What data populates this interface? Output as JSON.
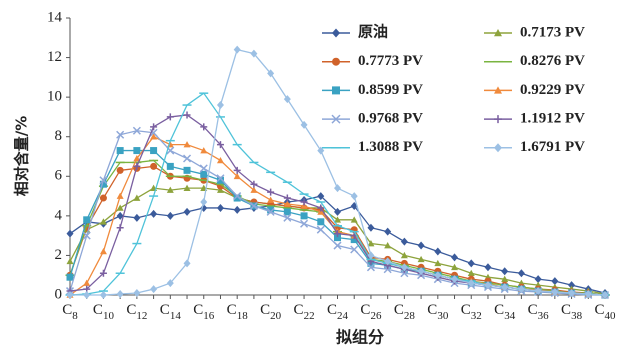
{
  "chart_data": {
    "type": "line",
    "xlabel": "拟组分",
    "ylabel": "相对含量/%",
    "categories": [
      "C8",
      null,
      "C10",
      null,
      "C12",
      null,
      "C14",
      null,
      "C16",
      null,
      "C18",
      null,
      "C20",
      null,
      "C22",
      null,
      "C24",
      null,
      "C26",
      null,
      "C28",
      null,
      "C30",
      null,
      "C32",
      null,
      "C34",
      null,
      "C36",
      null,
      "C38",
      null,
      "C40"
    ],
    "ylim": [
      0,
      14
    ],
    "yticks": [
      0,
      2,
      4,
      6,
      8,
      10,
      12,
      14
    ],
    "grid": false,
    "series": [
      {
        "name": "原油",
        "color": "#3b5b9b",
        "marker": "diamond",
        "values": [
          3.1,
          3.7,
          3.6,
          4.0,
          3.9,
          4.1,
          4.0,
          4.2,
          4.4,
          4.4,
          4.3,
          4.4,
          4.5,
          4.7,
          4.8,
          5.0,
          4.2,
          4.5,
          3.4,
          3.2,
          2.7,
          2.5,
          2.2,
          1.9,
          1.6,
          1.4,
          1.2,
          1.1,
          0.8,
          0.7,
          0.5,
          0.3,
          0.1
        ]
      },
      {
        "name": "0.7173 PV",
        "color": "#8da33c",
        "marker": "triangle",
        "values": [
          1.7,
          3.3,
          3.7,
          4.4,
          4.9,
          5.4,
          5.3,
          5.4,
          5.4,
          5.3,
          4.9,
          4.7,
          4.6,
          4.5,
          4.4,
          4.4,
          3.8,
          3.8,
          2.6,
          2.5,
          2.0,
          1.8,
          1.6,
          1.4,
          1.1,
          0.9,
          0.8,
          0.6,
          0.5,
          0.4,
          0.3,
          0.2,
          0.05
        ]
      },
      {
        "name": "0.7773 PV",
        "color": "#d0622a",
        "marker": "circle",
        "values": [
          1.0,
          3.4,
          4.9,
          6.3,
          6.4,
          6.5,
          6.0,
          5.9,
          5.8,
          5.5,
          4.9,
          4.7,
          4.6,
          4.5,
          4.4,
          4.3,
          3.4,
          3.3,
          1.9,
          1.8,
          1.6,
          1.4,
          1.2,
          1.0,
          0.8,
          0.7,
          0.5,
          0.4,
          0.3,
          0.25,
          0.15,
          0.1,
          0.0
        ]
      },
      {
        "name": "0.8276 PV",
        "color": "#7ab440",
        "marker": "dash",
        "values": [
          1.0,
          3.5,
          5.5,
          6.7,
          6.7,
          6.8,
          6.0,
          6.0,
          5.8,
          5.6,
          5.0,
          4.6,
          4.5,
          4.4,
          4.3,
          4.2,
          3.2,
          3.0,
          1.8,
          1.7,
          1.5,
          1.3,
          1.1,
          0.9,
          0.7,
          0.6,
          0.5,
          0.4,
          0.3,
          0.2,
          0.1,
          0.1,
          0.0
        ]
      },
      {
        "name": "0.8599 PV",
        "color": "#3aa2c2",
        "marker": "square",
        "values": [
          0.9,
          3.8,
          5.6,
          7.3,
          7.3,
          7.3,
          6.5,
          6.3,
          6.1,
          5.8,
          4.9,
          4.5,
          4.3,
          4.2,
          4.0,
          3.7,
          2.9,
          2.8,
          1.6,
          1.5,
          1.3,
          1.2,
          1.0,
          0.8,
          0.6,
          0.5,
          0.4,
          0.3,
          0.2,
          0.15,
          0.1,
          0.05,
          0.0
        ]
      },
      {
        "name": "0.9229 PV",
        "color": "#f08a3c",
        "marker": "triangle",
        "values": [
          0.0,
          0.6,
          2.2,
          5.0,
          6.9,
          8.0,
          7.6,
          7.6,
          7.3,
          6.8,
          6.0,
          5.3,
          4.8,
          4.6,
          4.5,
          4.2,
          3.2,
          3.0,
          1.8,
          1.6,
          1.4,
          1.2,
          1.0,
          0.8,
          0.7,
          0.55,
          0.4,
          0.3,
          0.25,
          0.15,
          0.1,
          0.05,
          0.0
        ]
      },
      {
        "name": "0.9768 PV",
        "color": "#8ea7d8",
        "marker": "x",
        "values": [
          0.2,
          3.0,
          5.8,
          8.1,
          8.3,
          8.2,
          7.3,
          6.9,
          6.4,
          5.9,
          5.0,
          4.5,
          4.2,
          3.9,
          3.6,
          3.3,
          2.5,
          2.3,
          1.4,
          1.3,
          1.1,
          1.0,
          0.8,
          0.6,
          0.5,
          0.4,
          0.3,
          0.2,
          0.15,
          0.1,
          0.05,
          0.0,
          0.0
        ]
      },
      {
        "name": "1.1912 PV",
        "color": "#7a5fa0",
        "marker": "plus",
        "values": [
          0.2,
          0.3,
          1.1,
          3.4,
          6.5,
          8.5,
          9.0,
          9.1,
          8.5,
          7.6,
          6.3,
          5.6,
          5.2,
          4.9,
          4.7,
          4.4,
          3.1,
          3.0,
          1.7,
          1.5,
          1.3,
          1.1,
          0.9,
          0.7,
          0.6,
          0.5,
          0.4,
          0.3,
          0.2,
          0.15,
          0.1,
          0.05,
          0.0
        ]
      },
      {
        "name": "1.3088 PV",
        "color": "#4fc3d9",
        "marker": "dash",
        "values": [
          0.0,
          0.05,
          0.2,
          1.1,
          2.6,
          5.0,
          7.8,
          9.6,
          10.2,
          9.0,
          7.6,
          6.7,
          6.2,
          5.7,
          5.1,
          4.7,
          3.5,
          3.2,
          1.8,
          1.6,
          1.4,
          1.2,
          1.0,
          0.8,
          0.7,
          0.5,
          0.4,
          0.3,
          0.2,
          0.15,
          0.1,
          0.05,
          0.0
        ]
      },
      {
        "name": "1.6791 PV",
        "color": "#9cc0e4",
        "marker": "diamond",
        "values": [
          0.0,
          0.0,
          0.0,
          0.05,
          0.1,
          0.3,
          0.6,
          1.6,
          4.7,
          9.6,
          12.4,
          12.2,
          11.2,
          9.9,
          8.6,
          7.3,
          5.4,
          5.0,
          2.0,
          1.7,
          1.4,
          1.2,
          1.0,
          0.8,
          0.6,
          0.5,
          0.4,
          0.3,
          0.2,
          0.15,
          0.1,
          0.05,
          0.0
        ]
      }
    ]
  }
}
